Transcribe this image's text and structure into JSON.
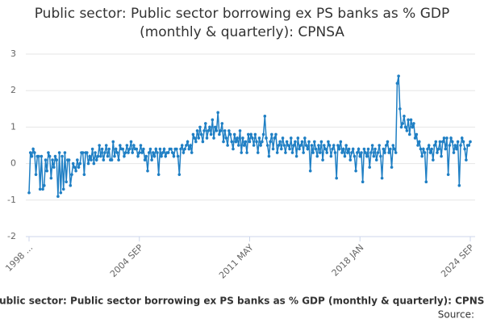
{
  "chart_data": {
    "type": "line",
    "title": "Public sector: Public sector borrowing ex PS banks as % GDP (monthly & quarterly): CPNSA",
    "caption": "Public sector: Public sector borrowing ex PS banks as % GDP (monthly & quarterly): CPNSA",
    "source": "Source:",
    "color": "#1f7fc4",
    "grid": true,
    "ylim": [
      -2,
      3
    ],
    "yticks": [
      -2,
      -1,
      0,
      1,
      2,
      3
    ],
    "categories": [
      "1998 ...",
      null,
      null,
      null,
      null,
      null,
      null,
      null,
      null,
      null,
      null,
      null,
      null,
      null,
      null,
      null,
      null,
      null,
      null,
      null,
      null,
      null,
      null,
      null,
      null,
      null,
      null,
      null,
      null,
      null,
      null,
      null,
      null,
      null,
      null,
      null,
      null,
      null,
      null,
      null,
      null,
      null,
      null,
      null,
      null,
      null,
      null,
      null,
      null,
      null,
      null,
      null,
      null,
      null,
      null,
      null,
      null,
      null,
      null,
      null,
      null,
      null,
      null,
      null,
      null,
      null,
      null,
      null,
      null,
      null,
      null,
      null,
      null,
      null,
      null,
      null,
      null,
      null,
      null,
      null,
      "2004 SEP",
      null,
      null,
      null,
      null,
      null,
      null,
      null,
      null,
      null,
      null,
      null,
      null,
      null,
      null,
      null,
      null,
      null,
      null,
      null,
      null,
      null,
      null,
      null,
      null,
      null,
      null,
      null,
      null,
      null,
      null,
      null,
      null,
      null,
      null,
      null,
      null,
      null,
      null,
      null,
      null,
      null,
      null,
      null,
      null,
      null,
      null,
      null,
      null,
      null,
      null,
      null,
      null,
      null,
      null,
      null,
      null,
      null,
      null,
      null,
      null,
      null,
      null,
      null,
      null,
      null,
      null,
      null,
      null,
      null,
      null,
      null,
      null,
      null,
      null,
      null,
      null,
      null,
      null,
      null,
      "2011 MAY",
      null,
      null,
      null,
      null,
      null,
      null,
      null,
      null,
      null,
      null,
      null,
      null,
      null,
      null,
      null,
      null,
      null,
      null,
      null,
      null,
      null,
      null,
      null,
      null,
      null,
      null,
      null,
      null,
      null,
      null,
      null,
      null,
      null,
      null,
      null,
      null,
      null,
      null,
      null,
      null,
      null,
      null,
      null,
      null,
      null,
      null,
      null,
      null,
      null,
      null,
      null,
      null,
      null,
      null,
      null,
      null,
      null,
      null,
      null,
      null,
      null,
      null,
      null,
      null,
      null,
      null,
      null,
      null,
      null,
      null,
      null,
      null,
      null,
      null,
      null,
      null,
      null,
      null,
      null,
      "2018 JAN",
      null,
      null,
      null,
      null,
      null,
      null,
      null,
      null,
      null,
      null,
      null,
      null,
      null,
      null,
      null,
      null,
      null,
      null,
      null,
      null,
      null,
      null,
      null,
      null,
      null,
      null,
      null,
      null,
      null,
      null,
      null,
      null,
      null,
      null,
      null,
      null,
      null,
      null,
      null,
      null,
      null,
      null,
      null,
      null,
      null,
      null,
      null,
      null,
      null,
      null,
      null,
      null,
      null,
      null,
      null,
      null,
      null,
      null,
      null,
      null,
      null,
      null,
      null,
      null,
      null,
      null,
      null,
      null,
      null,
      null,
      null,
      null,
      null,
      null,
      null,
      null,
      null,
      null,
      null,
      "2024 SEP"
    ],
    "values": [
      -0.8,
      0.3,
      0.2,
      0.4,
      0.3,
      -0.3,
      0.2,
      0.2,
      -0.7,
      0.2,
      -0.7,
      -0.6,
      0.1,
      -0.2,
      0.3,
      0.2,
      -0.4,
      0.1,
      -0.1,
      0.2,
      0.1,
      -0.9,
      0.3,
      -0.8,
      0.2,
      -0.7,
      0.3,
      -0.5,
      0.1,
      0.1,
      -0.6,
      -0.3,
      0.0,
      -0.1,
      -0.2,
      0.1,
      -0.1,
      0.0,
      0.3,
      0.3,
      -0.3,
      0.3,
      0.3,
      0.0,
      0.2,
      0.1,
      0.4,
      0.0,
      0.3,
      0.1,
      0.2,
      0.5,
      0.2,
      0.4,
      0.1,
      0.3,
      0.5,
      0.2,
      0.4,
      0.1,
      0.1,
      0.6,
      0.2,
      0.4,
      0.3,
      0.1,
      0.5,
      0.4,
      0.4,
      0.2,
      0.3,
      0.5,
      0.3,
      0.4,
      0.6,
      0.3,
      0.5,
      0.4,
      0.4,
      0.2,
      0.3,
      0.5,
      0.3,
      0.4,
      0.1,
      0.2,
      -0.2,
      0.3,
      0.4,
      0.1,
      0.3,
      0.2,
      0.4,
      0.3,
      -0.3,
      0.4,
      0.2,
      0.3,
      0.4,
      0.2,
      0.3,
      0.3,
      0.4,
      0.4,
      0.3,
      0.2,
      0.4,
      0.4,
      0.2,
      -0.3,
      0.4,
      0.5,
      0.3,
      0.4,
      0.5,
      0.6,
      0.4,
      0.5,
      0.3,
      0.8,
      0.7,
      0.6,
      0.9,
      0.7,
      1.0,
      0.8,
      0.6,
      0.9,
      1.1,
      0.7,
      0.9,
      1.0,
      0.8,
      1.2,
      0.7,
      1.0,
      0.9,
      1.4,
      0.8,
      0.9,
      1.1,
      0.6,
      0.9,
      0.7,
      0.5,
      0.9,
      0.8,
      0.6,
      0.4,
      0.8,
      0.6,
      0.7,
      0.5,
      0.9,
      0.3,
      0.7,
      0.5,
      0.6,
      0.3,
      0.8,
      0.6,
      0.8,
      0.7,
      0.5,
      0.8,
      0.6,
      0.3,
      0.7,
      0.5,
      0.6,
      0.8,
      1.3,
      0.7,
      0.5,
      0.2,
      0.6,
      0.8,
      0.4,
      0.7,
      0.8,
      0.3,
      0.5,
      0.6,
      0.4,
      0.7,
      0.5,
      0.3,
      0.6,
      0.5,
      0.4,
      0.7,
      0.3,
      0.5,
      0.6,
      0.2,
      0.7,
      0.4,
      0.5,
      0.6,
      0.3,
      0.7,
      0.5,
      0.4,
      0.6,
      -0.2,
      0.5,
      0.3,
      0.6,
      0.4,
      0.2,
      0.5,
      0.3,
      0.6,
      0.1,
      0.5,
      0.4,
      0.3,
      0.6,
      0.5,
      0.2,
      0.4,
      0.5,
      0.3,
      -0.4,
      0.5,
      0.4,
      0.6,
      0.3,
      0.4,
      0.2,
      0.5,
      0.3,
      0.4,
      0.1,
      0.3,
      0.4,
      0.2,
      -0.2,
      0.3,
      0.4,
      0.2,
      0.3,
      -0.5,
      0.4,
      0.3,
      0.2,
      0.4,
      -0.1,
      0.3,
      0.5,
      0.2,
      0.4,
      0.1,
      0.3,
      0.5,
      0.2,
      -0.4,
      0.4,
      0.3,
      0.5,
      0.6,
      0.3,
      0.4,
      -0.1,
      0.5,
      0.4,
      0.3,
      2.2,
      2.4,
      1.5,
      1.0,
      1.1,
      1.3,
      1.0,
      0.9,
      1.2,
      0.8,
      1.2,
      1.0,
      1.1,
      0.7,
      0.8,
      0.5,
      0.6,
      0.4,
      0.2,
      0.4,
      0.3,
      -0.5,
      0.4,
      0.5,
      0.3,
      0.4,
      0.1,
      0.5,
      0.6,
      0.3,
      0.4,
      0.6,
      0.2,
      0.6,
      0.7,
      0.4,
      0.7,
      -0.3,
      0.5,
      0.7,
      0.6,
      0.3,
      0.5,
      0.4,
      0.6,
      -0.6,
      0.5,
      0.7,
      0.6,
      0.4,
      0.1,
      0.5,
      0.5,
      0.6
    ]
  }
}
